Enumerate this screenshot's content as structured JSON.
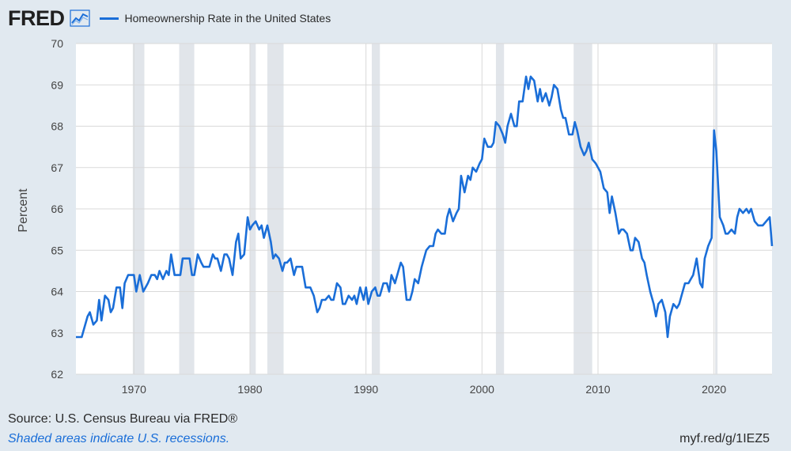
{
  "header": {
    "logo_text": "FRED",
    "graph_icon": "line-graph-icon"
  },
  "colors": {
    "background": "#e1e9f0",
    "plot_bg": "#ffffff",
    "series": "#1a6ed8",
    "recession": "#e1e5ea",
    "grid": "#d9d9d9"
  },
  "footer": {
    "source": "Source: U.S. Census Bureau via FRED®",
    "note": "Shaded areas indicate U.S. recessions.",
    "url": "myf.red/g/1IEZ5"
  },
  "chart_data": {
    "type": "line",
    "title": "",
    "xlabel": "",
    "ylabel": "Percent",
    "xlim": [
      1965.0,
      2025.0
    ],
    "ylim": [
      62,
      70
    ],
    "yticks": [
      62,
      63,
      64,
      65,
      66,
      67,
      68,
      69,
      70
    ],
    "xticks": [
      1970,
      1980,
      1990,
      2000,
      2010,
      2020
    ],
    "grid": true,
    "legend_position": "top-left",
    "recessions": [
      [
        1969.9,
        1970.9
      ],
      [
        1973.9,
        1975.2
      ],
      [
        1980.0,
        1980.5
      ],
      [
        1981.5,
        1982.9
      ],
      [
        1990.5,
        1991.2
      ],
      [
        2001.2,
        2001.9
      ],
      [
        2007.9,
        2009.5
      ],
      [
        2020.1,
        2020.3
      ]
    ],
    "series": [
      {
        "name": "Homeownership Rate in the United States",
        "x": [
          1965.0,
          1965.5,
          1966.0,
          1966.2,
          1966.5,
          1966.8,
          1967.0,
          1967.2,
          1967.5,
          1967.8,
          1968.0,
          1968.2,
          1968.5,
          1968.8,
          1969.0,
          1969.2,
          1969.5,
          1969.8,
          1970.0,
          1970.2,
          1970.5,
          1970.8,
          1971.0,
          1971.2,
          1971.5,
          1971.8,
          1972.0,
          1972.2,
          1972.5,
          1972.8,
          1973.0,
          1973.2,
          1973.5,
          1973.8,
          1974.0,
          1974.2,
          1974.5,
          1974.8,
          1975.0,
          1975.2,
          1975.5,
          1975.8,
          1976.0,
          1976.2,
          1976.5,
          1976.8,
          1977.0,
          1977.2,
          1977.5,
          1977.8,
          1978.0,
          1978.2,
          1978.5,
          1978.8,
          1979.0,
          1979.2,
          1979.5,
          1979.8,
          1980.0,
          1980.2,
          1980.5,
          1980.8,
          1981.0,
          1981.2,
          1981.5,
          1981.8,
          1982.0,
          1982.2,
          1982.5,
          1982.8,
          1983.0,
          1983.2,
          1983.5,
          1983.8,
          1984.0,
          1984.2,
          1984.5,
          1984.8,
          1985.0,
          1985.2,
          1985.5,
          1985.8,
          1986.0,
          1986.2,
          1986.5,
          1986.8,
          1987.0,
          1987.2,
          1987.5,
          1987.8,
          1988.0,
          1988.2,
          1988.5,
          1988.8,
          1989.0,
          1989.2,
          1989.5,
          1989.8,
          1990.0,
          1990.2,
          1990.5,
          1990.8,
          1991.0,
          1991.2,
          1991.5,
          1991.8,
          1992.0,
          1992.2,
          1992.5,
          1992.8,
          1993.0,
          1993.2,
          1993.5,
          1993.8,
          1994.0,
          1994.2,
          1994.5,
          1994.8,
          1995.0,
          1995.2,
          1995.5,
          1995.8,
          1996.0,
          1996.2,
          1996.5,
          1996.8,
          1997.0,
          1997.2,
          1997.5,
          1997.8,
          1998.0,
          1998.2,
          1998.5,
          1998.8,
          1999.0,
          1999.2,
          1999.5,
          1999.8,
          2000.0,
          2000.2,
          2000.5,
          2000.8,
          2001.0,
          2001.2,
          2001.5,
          2001.8,
          2002.0,
          2002.2,
          2002.5,
          2002.8,
          2003.0,
          2003.2,
          2003.5,
          2003.8,
          2004.0,
          2004.2,
          2004.5,
          2004.8,
          2005.0,
          2005.2,
          2005.5,
          2005.8,
          2006.0,
          2006.2,
          2006.5,
          2006.8,
          2007.0,
          2007.2,
          2007.5,
          2007.8,
          2008.0,
          2008.2,
          2008.5,
          2008.8,
          2009.0,
          2009.2,
          2009.5,
          2009.8,
          2010.0,
          2010.2,
          2010.5,
          2010.8,
          2011.0,
          2011.2,
          2011.5,
          2011.8,
          2012.0,
          2012.2,
          2012.5,
          2012.8,
          2013.0,
          2013.2,
          2013.5,
          2013.8,
          2014.0,
          2014.2,
          2014.5,
          2014.8,
          2015.0,
          2015.2,
          2015.5,
          2015.8,
          2016.0,
          2016.2,
          2016.5,
          2016.8,
          2017.0,
          2017.2,
          2017.5,
          2017.8,
          2018.0,
          2018.2,
          2018.5,
          2018.8,
          2019.0,
          2019.2,
          2019.5,
          2019.8,
          2020.0,
          2020.2,
          2020.5,
          2020.8,
          2021.0,
          2021.2,
          2021.5,
          2021.8,
          2022.0,
          2022.2,
          2022.5,
          2022.8,
          2023.0,
          2023.2,
          2023.5,
          2023.8,
          2024.0,
          2024.2,
          2024.5,
          2024.8,
          2025.0
        ],
        "values": [
          62.9,
          62.9,
          63.4,
          63.5,
          63.2,
          63.3,
          63.8,
          63.3,
          63.9,
          63.8,
          63.5,
          63.6,
          64.1,
          64.1,
          63.6,
          64.2,
          64.4,
          64.4,
          64.4,
          64.0,
          64.4,
          64.0,
          64.1,
          64.2,
          64.4,
          64.4,
          64.3,
          64.5,
          64.3,
          64.5,
          64.4,
          64.9,
          64.4,
          64.4,
          64.4,
          64.8,
          64.8,
          64.8,
          64.4,
          64.4,
          64.9,
          64.7,
          64.6,
          64.6,
          64.6,
          64.9,
          64.8,
          64.8,
          64.5,
          64.9,
          64.9,
          64.8,
          64.4,
          65.2,
          65.4,
          64.8,
          64.9,
          65.8,
          65.5,
          65.6,
          65.7,
          65.5,
          65.6,
          65.3,
          65.6,
          65.2,
          64.8,
          64.9,
          64.8,
          64.5,
          64.7,
          64.7,
          64.8,
          64.4,
          64.6,
          64.6,
          64.6,
          64.1,
          64.1,
          64.1,
          63.9,
          63.5,
          63.6,
          63.8,
          63.8,
          63.9,
          63.8,
          63.8,
          64.2,
          64.1,
          63.7,
          63.7,
          63.9,
          63.8,
          63.9,
          63.7,
          64.1,
          63.8,
          64.1,
          63.7,
          64.0,
          64.1,
          63.9,
          63.9,
          64.2,
          64.2,
          64.0,
          64.4,
          64.2,
          64.5,
          64.7,
          64.6,
          63.8,
          63.8,
          64.0,
          64.3,
          64.2,
          64.6,
          64.8,
          65.0,
          65.1,
          65.1,
          65.4,
          65.5,
          65.4,
          65.4,
          65.8,
          66.0,
          65.7,
          65.9,
          66.0,
          66.8,
          66.4,
          66.8,
          66.7,
          67.0,
          66.9,
          67.1,
          67.2,
          67.7,
          67.5,
          67.5,
          67.6,
          68.1,
          68.0,
          67.8,
          67.6,
          68.0,
          68.3,
          68.0,
          68.0,
          68.6,
          68.6,
          69.2,
          68.9,
          69.2,
          69.1,
          68.6,
          68.9,
          68.6,
          68.8,
          68.5,
          68.7,
          69.0,
          68.9,
          68.4,
          68.2,
          68.2,
          67.8,
          67.8,
          68.1,
          67.9,
          67.5,
          67.3,
          67.4,
          67.6,
          67.2,
          67.1,
          67.0,
          66.9,
          66.5,
          66.4,
          65.9,
          66.3,
          65.9,
          65.4,
          65.5,
          65.5,
          65.4,
          65.0,
          65.0,
          65.3,
          65.2,
          64.8,
          64.7,
          64.4,
          64.0,
          63.7,
          63.4,
          63.7,
          63.8,
          63.5,
          62.9,
          63.4,
          63.7,
          63.6,
          63.7,
          63.9,
          64.2,
          64.2,
          64.3,
          64.4,
          64.8,
          64.2,
          64.1,
          64.8,
          65.1,
          65.3,
          67.9,
          67.4,
          65.8,
          65.6,
          65.4,
          65.4,
          65.5,
          65.4,
          65.8,
          66.0,
          65.9,
          66.0,
          65.9,
          66.0,
          65.7,
          65.6,
          65.6,
          65.6,
          65.7,
          65.8,
          65.1
        ]
      }
    ]
  }
}
